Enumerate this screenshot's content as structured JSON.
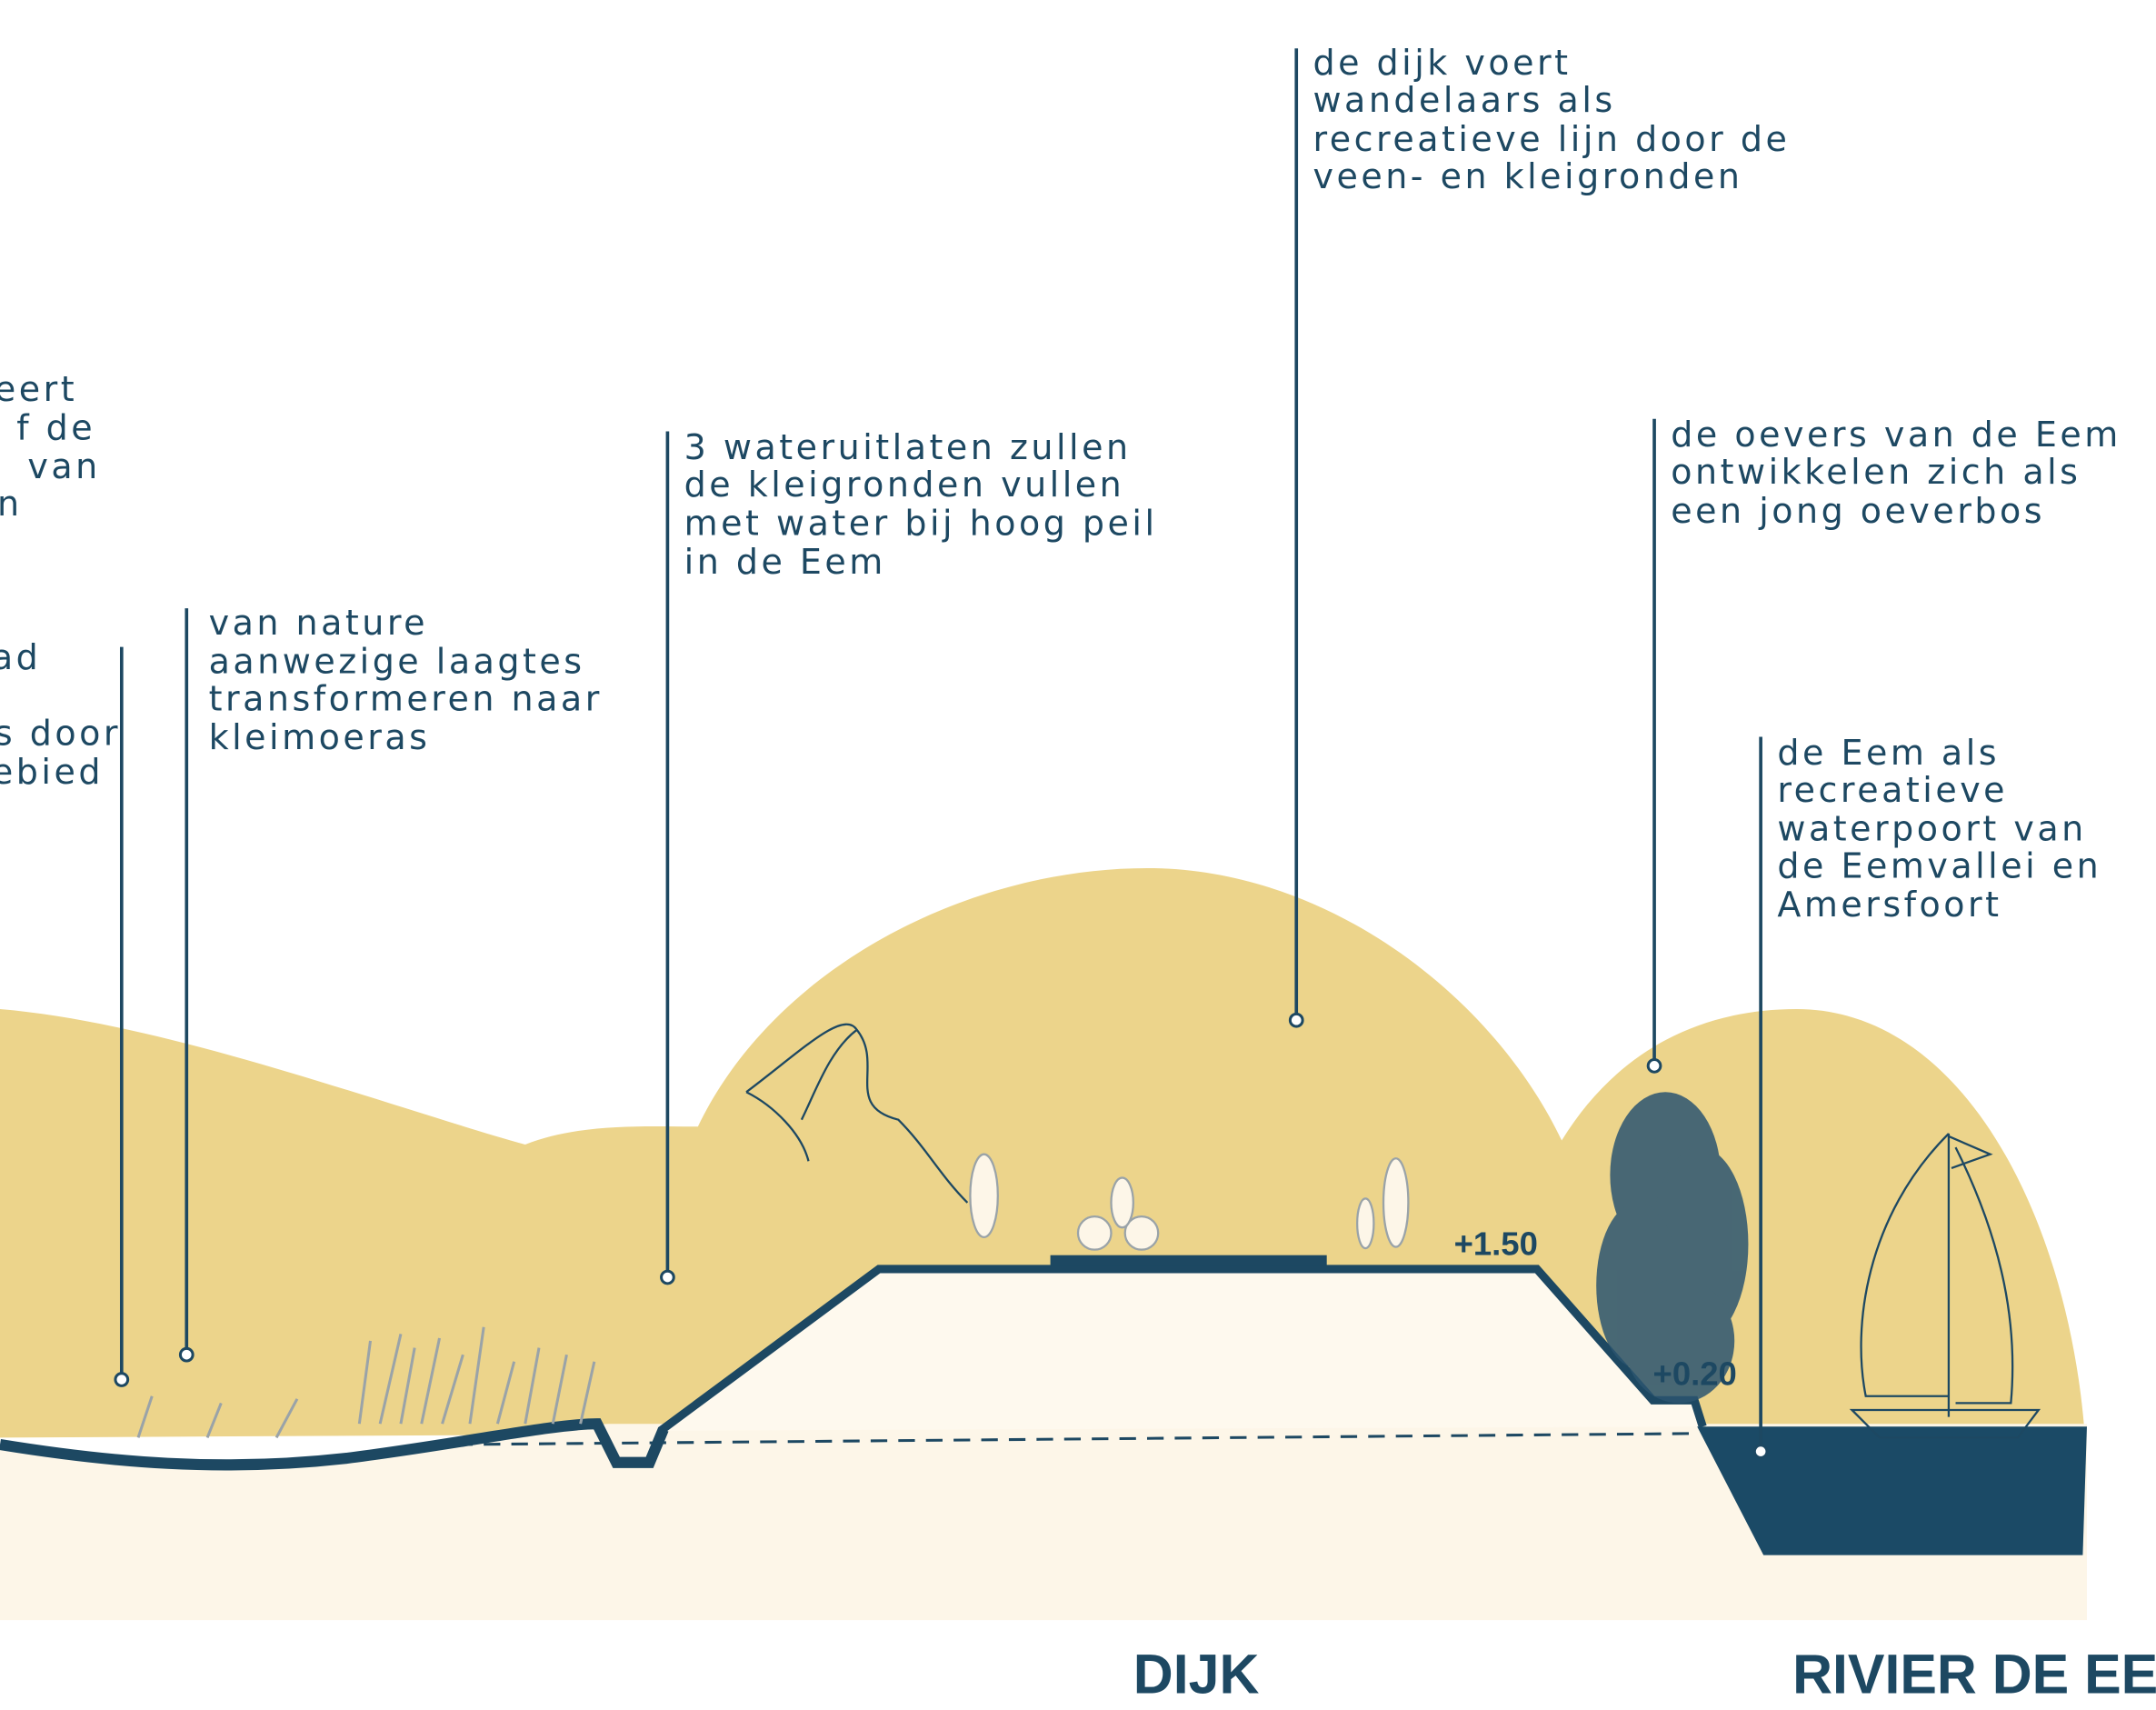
{
  "annotations": [
    {
      "lines": [
        "eert",
        "f de",
        "van",
        "n"
      ]
    },
    {
      "lines": [
        "ad",
        "s door",
        "ebied"
      ]
    },
    {
      "lines": [
        "van nature",
        "aanwezige laagtes",
        "transformeren naar",
        "kleimoeras"
      ]
    },
    {
      "lines": [
        "3 wateruitlaten zullen",
        "de kleigronden vullen",
        "met water bij hoog peil",
        "in de Eem"
      ]
    },
    {
      "lines": [
        "de dijk voert",
        "wandelaars als",
        "recreatieve lijn door de",
        "veen- en kleigronden"
      ]
    },
    {
      "lines": [
        "de oevers van de Eem",
        "ontwikkelen zich als",
        "een jong oeverbos"
      ]
    },
    {
      "lines": [
        "de Eem als",
        "recreatieve",
        "waterpoort van",
        "de Eemvallei en",
        "Amersfoort"
      ]
    }
  ],
  "levels": [
    "+1.50",
    "+0.20"
  ],
  "sections": [
    "DIJK",
    "RIVIER DE EEM"
  ]
}
